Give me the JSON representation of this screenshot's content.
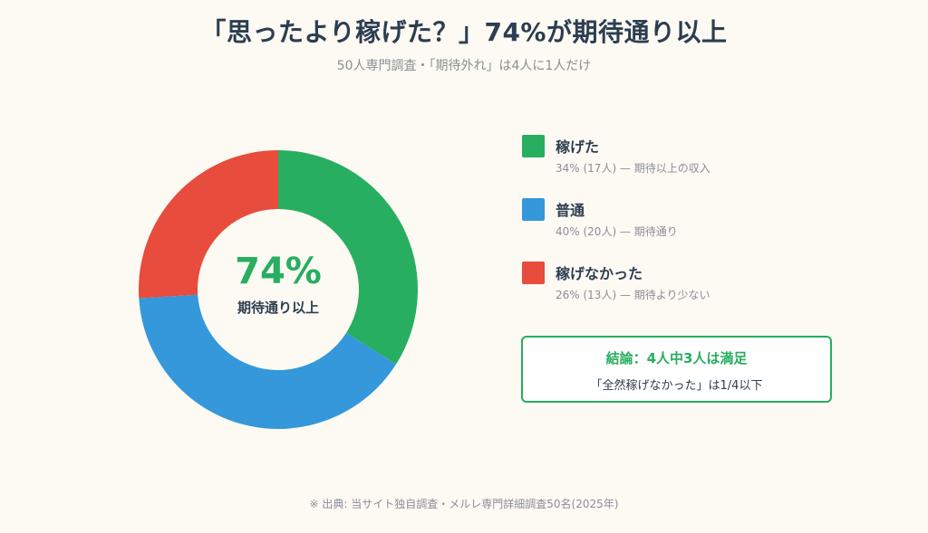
{
  "header": {
    "title": "「思ったより稼げた？」74%が期待通り以上",
    "subtitle": "50人専門調査・「期待外れ」は4人に1人だけ"
  },
  "chart_data": {
    "type": "pie",
    "donut": true,
    "center_value": "74%",
    "center_label": "期待通り以上",
    "slices": [
      {
        "label": "稼げた",
        "value": 34,
        "count": 17,
        "color": "#27ae60",
        "desc": "34% (17人) — 期待以上の収入"
      },
      {
        "label": "普通",
        "value": 40,
        "count": 20,
        "color": "#3498db",
        "desc": "40% (20人) — 期待通り"
      },
      {
        "label": "稼げなかった",
        "value": 26,
        "count": 13,
        "color": "#e74c3c",
        "desc": "26% (13人) — 期待より少ない"
      }
    ],
    "legend_position": "right"
  },
  "conclusion": {
    "title": "結論：4人中3人は満足",
    "body": "「全然稼げなかった」は1/4以下"
  },
  "footer": {
    "source": "※ 出典: 当サイト独自調査・メルレ専門詳細調査50名(2025年)"
  },
  "colors": {
    "background": "#fdf9f3",
    "accent": "#27ae60",
    "text": "#2c3e50",
    "muted": "#8a8f96"
  }
}
